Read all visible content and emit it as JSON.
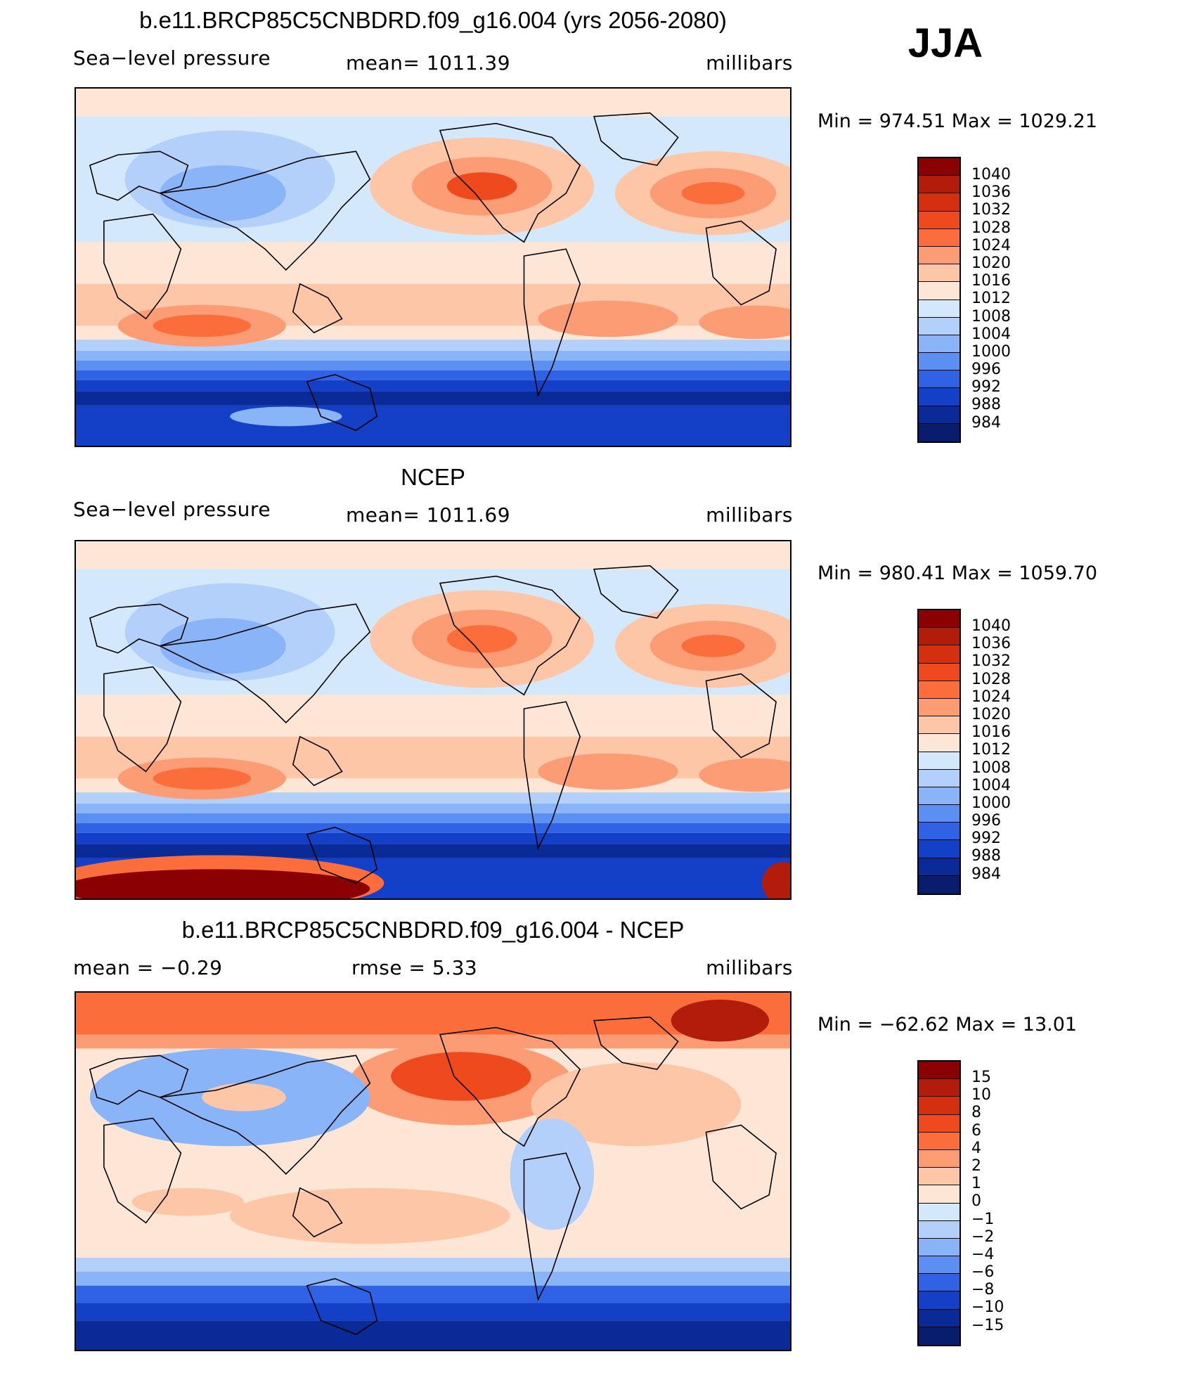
{
  "season": "JJA",
  "panels": [
    {
      "title": "b.e11.BRCP85C5CNBDRD.f09_g16.004 (yrs 2056-2080)",
      "left_label": "Sea−level pressure",
      "center_label": "mean=  1011.39",
      "right_label": "millibars",
      "minmax": "Min  =  974.51  Max  =  1029.21",
      "colorbar": {
        "levels": [
          "1040",
          "1036",
          "1032",
          "1028",
          "1024",
          "1020",
          "1016",
          "1012",
          "1008",
          "1004",
          "1000",
          "996",
          "992",
          "988",
          "984"
        ],
        "colors": [
          "#8b0000",
          "#b21c0a",
          "#d43010",
          "#ef4a1e",
          "#fb6e3c",
          "#fc9c74",
          "#fdc6a6",
          "#fde6d6",
          "#d4e8fb",
          "#b3d0fa",
          "#8ab4f8",
          "#5b8ff2",
          "#2f62e4",
          "#1440c8",
          "#0a2a98",
          "#081d6e"
        ]
      },
      "field": "model"
    },
    {
      "title": "NCEP",
      "left_label": "Sea−level pressure",
      "center_label": "mean=  1011.69",
      "right_label": "millibars",
      "minmax": "Min  =  980.41  Max  =  1059.70",
      "colorbar": {
        "levels": [
          "1040",
          "1036",
          "1032",
          "1028",
          "1024",
          "1020",
          "1016",
          "1012",
          "1008",
          "1004",
          "1000",
          "996",
          "992",
          "988",
          "984"
        ],
        "colors": [
          "#8b0000",
          "#b21c0a",
          "#d43010",
          "#ef4a1e",
          "#fb6e3c",
          "#fc9c74",
          "#fdc6a6",
          "#fde6d6",
          "#d4e8fb",
          "#b3d0fa",
          "#8ab4f8",
          "#5b8ff2",
          "#2f62e4",
          "#1440c8",
          "#0a2a98",
          "#081d6e"
        ]
      },
      "field": "obs"
    },
    {
      "title": "b.e11.BRCP85C5CNBDRD.f09_g16.004 - NCEP",
      "left_label": "mean  =    −0.29",
      "center_label": "rmse  =     5.33",
      "right_label": "millibars",
      "minmax": "Min  =  −62.62  Max  =    13.01",
      "colorbar": {
        "levels": [
          "15",
          "10",
          "8",
          "6",
          "4",
          "2",
          "1",
          "0",
          "−1",
          "−2",
          "−4",
          "−6",
          "−8",
          "−10",
          "−15"
        ],
        "colors": [
          "#8b0000",
          "#b21c0a",
          "#d43010",
          "#ef4a1e",
          "#fb6e3c",
          "#fc9c74",
          "#fdc6a6",
          "#fde6d6",
          "#d4e8fb",
          "#b3d0fa",
          "#8ab4f8",
          "#5b8ff2",
          "#2f62e4",
          "#1440c8",
          "#0a2a98",
          "#081d6e"
        ]
      },
      "field": "diff"
    }
  ]
}
